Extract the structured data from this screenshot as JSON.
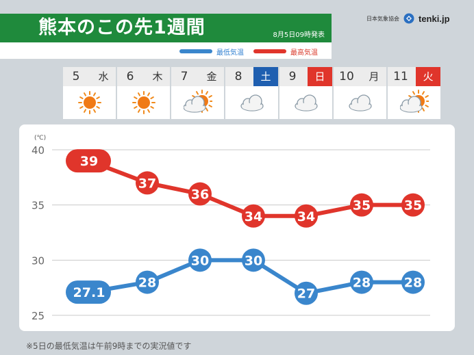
{
  "header": {
    "title": "熊本のこの先1週間",
    "issued": "8月5日09時発表",
    "legend": {
      "min_label": "最低気温",
      "max_label": "最高気温"
    }
  },
  "logo": {
    "org": "日本気象協会",
    "brand": "tenki.jp"
  },
  "days": [
    {
      "num": "5",
      "weekday": "水",
      "kind": "weekday",
      "weather": "sunny"
    },
    {
      "num": "6",
      "weekday": "木",
      "kind": "weekday",
      "weather": "sunny"
    },
    {
      "num": "7",
      "weekday": "金",
      "kind": "weekday",
      "weather": "cloudy-sunny"
    },
    {
      "num": "8",
      "weekday": "土",
      "kind": "sat",
      "weather": "cloudy"
    },
    {
      "num": "9",
      "weekday": "日",
      "kind": "sun",
      "weather": "cloudy"
    },
    {
      "num": "10",
      "weekday": "月",
      "kind": "weekday",
      "weather": "cloudy"
    },
    {
      "num": "11",
      "weekday": "火",
      "kind": "sun",
      "weather": "cloudy-sunny"
    }
  ],
  "chart_data": {
    "type": "line",
    "unit": "(℃)",
    "categories": [
      "5",
      "6",
      "7",
      "8",
      "9",
      "10",
      "11"
    ],
    "ylim": [
      25,
      40
    ],
    "yticks": [
      40,
      35,
      30,
      25
    ],
    "grid": true,
    "series": [
      {
        "name": "最高気温",
        "color": "#e0352b",
        "values": [
          39,
          37,
          36,
          34,
          34,
          35,
          35
        ],
        "labels": [
          "39",
          "37",
          "36",
          "34",
          "34",
          "35",
          "35"
        ]
      },
      {
        "name": "最低気温",
        "color": "#3a86cc",
        "values": [
          27.1,
          28,
          30,
          30,
          27,
          28,
          28
        ],
        "labels": [
          "27.1",
          "28",
          "30",
          "30",
          "27",
          "28",
          "28"
        ]
      }
    ]
  },
  "footnote": "※5日の最低気温は午前9時までの実況値です"
}
